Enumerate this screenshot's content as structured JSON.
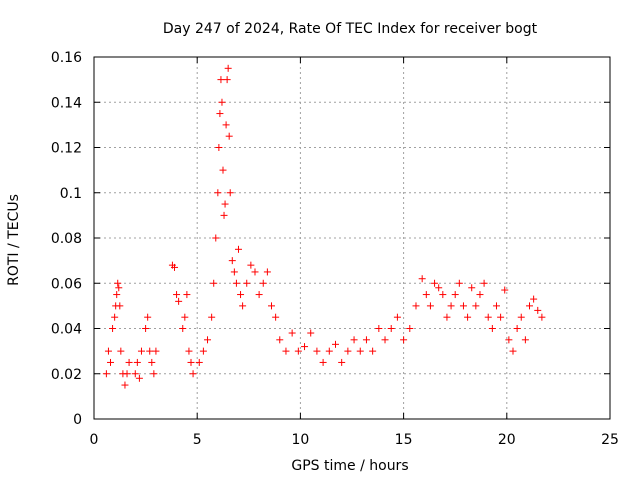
{
  "chart_data": {
    "type": "scatter",
    "title": "Day 247 of 2024, Rate Of TEC Index for receiver bogt",
    "xlabel": "GPS time / hours",
    "ylabel": "ROTI / TECUs",
    "xlim": [
      0,
      25
    ],
    "ylim": [
      0,
      0.16
    ],
    "xticks": [
      0,
      5,
      10,
      15,
      20,
      25
    ],
    "yticks": [
      0,
      0.02,
      0.04,
      0.06,
      0.08,
      0.1,
      0.12,
      0.14,
      0.16
    ],
    "xtick_labels": [
      "0",
      "5",
      "10",
      "15",
      "20",
      "25"
    ],
    "ytick_labels": [
      "0",
      "0.02",
      "0.04",
      "0.06",
      "0.08",
      "0.1",
      "0.12",
      "0.14",
      "0.16"
    ],
    "grid": true,
    "marker": "+",
    "color": "#ff0000",
    "series": [
      {
        "x": [
          0.6,
          0.7,
          0.8,
          0.9,
          1.0,
          1.05,
          1.1,
          1.15,
          1.2,
          1.25,
          1.3,
          1.4,
          1.5,
          1.6,
          1.7,
          2.0,
          2.1,
          2.2,
          2.3,
          2.5,
          2.6,
          2.7,
          2.8,
          2.9,
          3.0,
          3.8,
          3.9,
          4.0,
          4.1,
          4.3,
          4.4,
          4.5,
          4.6,
          4.7,
          4.8,
          5.1,
          5.3,
          5.5,
          5.7,
          5.8,
          5.9,
          6.0,
          6.05,
          6.1,
          6.15,
          6.2,
          6.25,
          6.3,
          6.35,
          6.4,
          6.45,
          6.5,
          6.55,
          6.6,
          6.7,
          6.8,
          6.9,
          7.0,
          7.1,
          7.2,
          7.4,
          7.6,
          7.8,
          8.0,
          8.2,
          8.4,
          8.6,
          8.8,
          9.0,
          9.3,
          9.6,
          9.9,
          10.2,
          10.5,
          10.8,
          11.1,
          11.4,
          11.7,
          12.0,
          12.3,
          12.6,
          12.9,
          13.2,
          13.5,
          13.8,
          14.1,
          14.4,
          14.7,
          15.0,
          15.3,
          15.6,
          15.9,
          16.1,
          16.3,
          16.5,
          16.7,
          16.9,
          17.1,
          17.3,
          17.5,
          17.7,
          17.9,
          18.1,
          18.3,
          18.5,
          18.7,
          18.9,
          19.1,
          19.3,
          19.5,
          19.7,
          19.9,
          20.1,
          20.3,
          20.5,
          20.7,
          20.9,
          21.1,
          21.3,
          21.5,
          21.7
        ],
        "y": [
          0.02,
          0.03,
          0.025,
          0.04,
          0.045,
          0.05,
          0.055,
          0.06,
          0.058,
          0.05,
          0.03,
          0.02,
          0.015,
          0.02,
          0.025,
          0.02,
          0.025,
          0.018,
          0.03,
          0.04,
          0.045,
          0.03,
          0.025,
          0.02,
          0.03,
          0.068,
          0.067,
          0.055,
          0.052,
          0.04,
          0.045,
          0.055,
          0.03,
          0.025,
          0.02,
          0.025,
          0.03,
          0.035,
          0.045,
          0.06,
          0.08,
          0.1,
          0.12,
          0.135,
          0.15,
          0.14,
          0.11,
          0.09,
          0.095,
          0.13,
          0.15,
          0.155,
          0.125,
          0.1,
          0.07,
          0.065,
          0.06,
          0.075,
          0.055,
          0.05,
          0.06,
          0.068,
          0.065,
          0.055,
          0.06,
          0.065,
          0.05,
          0.045,
          0.035,
          0.03,
          0.038,
          0.03,
          0.032,
          0.038,
          0.03,
          0.025,
          0.03,
          0.033,
          0.025,
          0.03,
          0.035,
          0.03,
          0.035,
          0.03,
          0.04,
          0.035,
          0.04,
          0.045,
          0.035,
          0.04,
          0.05,
          0.062,
          0.055,
          0.05,
          0.06,
          0.058,
          0.055,
          0.045,
          0.05,
          0.055,
          0.06,
          0.05,
          0.045,
          0.058,
          0.05,
          0.055,
          0.06,
          0.045,
          0.04,
          0.05,
          0.045,
          0.057,
          0.035,
          0.03,
          0.04,
          0.045,
          0.035,
          0.05,
          0.053,
          0.048,
          0.045
        ]
      }
    ]
  }
}
